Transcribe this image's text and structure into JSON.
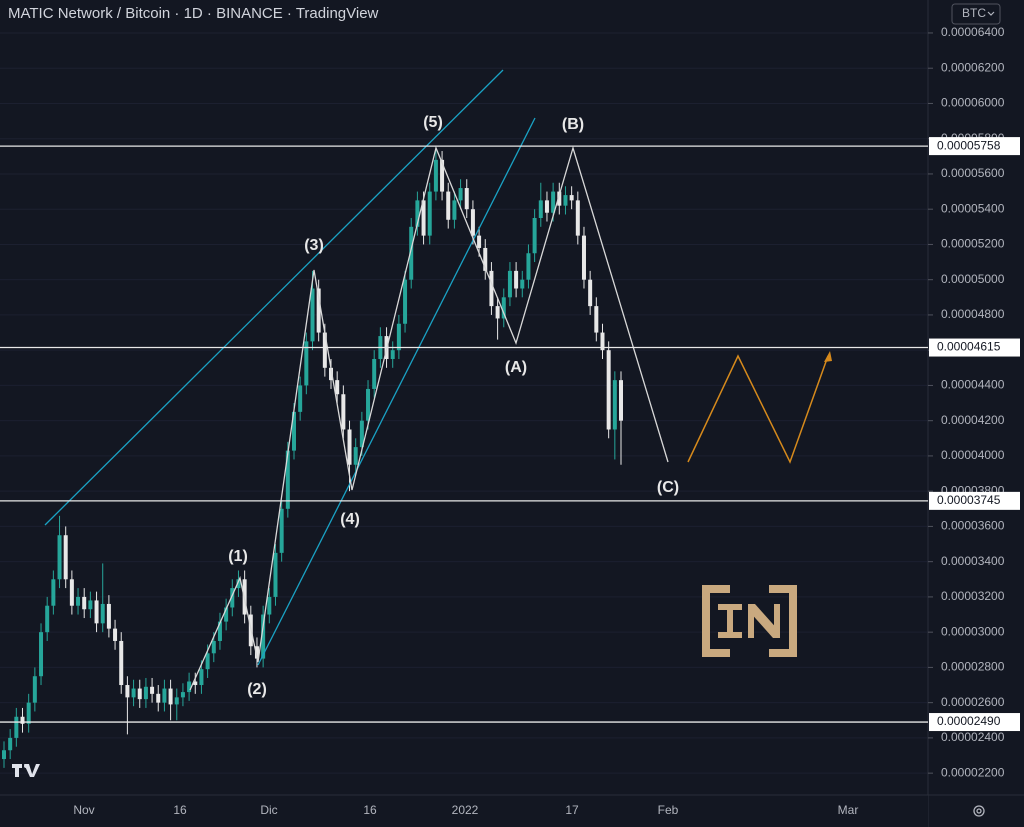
{
  "chart_data": {
    "type": "candlestick",
    "title": "MATIC Network / Bitcoin · 1D · BINANCE · TradingView",
    "currency": "BTC",
    "up_color": "#26a69a",
    "down_color": "#e8e8e8",
    "ylim": [
      2.076e-05,
      6.587e-05
    ],
    "yticks": [
      {
        "value": 6.4e-05,
        "label": "0.00006400"
      },
      {
        "value": 6.2e-05,
        "label": "0.00006200"
      },
      {
        "value": 6e-05,
        "label": "0.00006000"
      },
      {
        "value": 5.8e-05,
        "label": "0.00005800"
      },
      {
        "value": 5.6e-05,
        "label": "0.00005600"
      },
      {
        "value": 5.4e-05,
        "label": "0.00005400"
      },
      {
        "value": 5.2e-05,
        "label": "0.00005200"
      },
      {
        "value": 5e-05,
        "label": "0.00005000"
      },
      {
        "value": 4.8e-05,
        "label": "0.00004800"
      },
      {
        "value": 4.6e-05,
        "label": "0.00004600"
      },
      {
        "value": 4.4e-05,
        "label": "0.00004400"
      },
      {
        "value": 4.2e-05,
        "label": "0.00004200"
      },
      {
        "value": 4e-05,
        "label": "0.00004000"
      },
      {
        "value": 3.8e-05,
        "label": "0.00003800"
      },
      {
        "value": 3.6e-05,
        "label": "0.00003600"
      },
      {
        "value": 3.4e-05,
        "label": "0.00003400"
      },
      {
        "value": 3.2e-05,
        "label": "0.00003200"
      },
      {
        "value": 3e-05,
        "label": "0.00003000"
      },
      {
        "value": 2.8e-05,
        "label": "0.00002800"
      },
      {
        "value": 2.6e-05,
        "label": "0.00002600"
      },
      {
        "value": 2.4e-05,
        "label": "0.00002400"
      },
      {
        "value": 2.2e-05,
        "label": "0.00002200"
      }
    ],
    "price_lines": [
      5.758e-05,
      4.615e-05,
      3.745e-05,
      {
        "value": 2.49e-05,
        "label": "0.00002490"
      }
    ],
    "xlabels": [
      "Nov",
      "16",
      "Dic",
      "16",
      "2022",
      "17",
      "Feb",
      "Mar"
    ],
    "wave_labels": [
      "(1)",
      "(2)",
      "(3)",
      "(4)",
      "(5)",
      "(A)",
      "(B)",
      "(C)"
    ],
    "open": [
      2.28e-05,
      2.33e-05,
      2.4e-05,
      2.52e-05,
      2.48e-05,
      2.6e-05,
      2.75e-05,
      3e-05,
      3.15e-05,
      3.3e-05,
      3.55e-05,
      3.3e-05,
      3.15e-05,
      3.2e-05,
      3.13e-05,
      3.18e-05,
      3.05e-05,
      3.16e-05,
      3.02e-05,
      2.95e-05,
      2.7e-05,
      2.63e-05,
      2.68e-05,
      2.62e-05,
      2.69e-05,
      2.65e-05,
      2.6e-05,
      2.68e-05,
      2.59e-05,
      2.63e-05,
      2.66e-05,
      2.72e-05,
      2.7e-05,
      2.79e-05,
      2.88e-05,
      2.95e-05,
      3.06e-05,
      3.14e-05,
      3.25e-05,
      3.3e-05,
      3.1e-05,
      2.92e-05,
      2.85e-05,
      3.1e-05,
      3.2e-05,
      3.45e-05,
      3.7e-05,
      4.03e-05,
      4.25e-05,
      4.4e-05,
      4.65e-05,
      4.95e-05,
      4.7e-05,
      4.5e-05,
      4.43e-05,
      4.35e-05,
      4.15e-05,
      3.95e-05,
      4.05e-05,
      4.2e-05,
      4.38e-05,
      4.55e-05,
      4.68e-05,
      4.55e-05,
      4.6e-05,
      4.75e-05,
      5e-05,
      5.3e-05,
      5.45e-05,
      5.25e-05,
      5.5e-05,
      5.68e-05,
      5.5e-05,
      5.34e-05,
      5.45e-05,
      5.52e-05,
      5.4e-05,
      5.25e-05,
      5.18e-05,
      5.05e-05,
      4.85e-05,
      4.78e-05,
      4.9e-05,
      5.05e-05,
      4.95e-05,
      5e-05,
      5.15e-05,
      5.35e-05,
      5.45e-05,
      5.38e-05,
      5.5e-05,
      5.42e-05,
      5.48e-05,
      5.45e-05,
      5.25e-05,
      5e-05,
      4.85e-05,
      4.7e-05,
      4.6e-05,
      4.15e-05,
      4.43e-05
    ],
    "high": [
      2.38e-05,
      2.45e-05,
      2.57e-05,
      2.57e-05,
      2.65e-05,
      2.8e-05,
      3.05e-05,
      3.2e-05,
      3.35e-05,
      3.66e-05,
      3.6e-05,
      3.35e-05,
      3.25e-05,
      3.25e-05,
      3.23e-05,
      3.23e-05,
      3.39e-05,
      3.21e-05,
      3.07e-05,
      3e-05,
      2.75e-05,
      2.73e-05,
      2.73e-05,
      2.74e-05,
      2.74e-05,
      2.7e-05,
      2.73e-05,
      2.73e-05,
      2.68e-05,
      2.71e-05,
      2.77e-05,
      2.77e-05,
      2.84e-05,
      2.93e-05,
      3e-05,
      3.11e-05,
      3.19e-05,
      3.3e-05,
      3.35e-05,
      3.35e-05,
      3.15e-05,
      2.97e-05,
      3.15e-05,
      3.25e-05,
      3.5e-05,
      3.75e-05,
      4.08e-05,
      4.3e-05,
      4.45e-05,
      4.7e-05,
      5.05e-05,
      5e-05,
      4.75e-05,
      4.55e-05,
      4.48e-05,
      4.4e-05,
      4.2e-05,
      4.1e-05,
      4.25e-05,
      4.43e-05,
      4.6e-05,
      4.73e-05,
      4.73e-05,
      4.65e-05,
      4.8e-05,
      5.05e-05,
      5.35e-05,
      5.5e-05,
      5.5e-05,
      5.55e-05,
      5.75e-05,
      5.73e-05,
      5.55e-05,
      5.5e-05,
      5.57e-05,
      5.57e-05,
      5.45e-05,
      5.3e-05,
      5.23e-05,
      5.1e-05,
      4.9e-05,
      4.95e-05,
      5.1e-05,
      5.1e-05,
      5.05e-05,
      5.2e-05,
      5.4e-05,
      5.55e-05,
      5.5e-05,
      5.55e-05,
      5.55e-05,
      5.53e-05,
      5.53e-05,
      5.5e-05,
      5.3e-05,
      5.05e-05,
      4.9e-05,
      4.75e-05,
      4.65e-05,
      4.48e-05,
      4.48e-05
    ],
    "low": [
      2.23e-05,
      2.28e-05,
      2.35e-05,
      2.43e-05,
      2.43e-05,
      2.55e-05,
      2.7e-05,
      2.95e-05,
      3.1e-05,
      3.25e-05,
      3.25e-05,
      3.1e-05,
      3.1e-05,
      3.08e-05,
      3.08e-05,
      3e-05,
      3e-05,
      2.97e-05,
      2.9e-05,
      2.65e-05,
      2.42e-05,
      2.58e-05,
      2.57e-05,
      2.57e-05,
      2.6e-05,
      2.55e-05,
      2.55e-05,
      2.5e-05,
      2.5e-05,
      2.58e-05,
      2.61e-05,
      2.65e-05,
      2.65e-05,
      2.74e-05,
      2.83e-05,
      2.9e-05,
      3.01e-05,
      3.09e-05,
      3.2e-05,
      3.05e-05,
      2.87e-05,
      2.8e-05,
      2.8e-05,
      3.05e-05,
      3.15e-05,
      3.4e-05,
      3.65e-05,
      3.98e-05,
      4.2e-05,
      4.35e-05,
      4.6e-05,
      4.65e-05,
      4.45e-05,
      4.38e-05,
      4.3e-05,
      4.1e-05,
      3.8e-05,
      3.9e-05,
      4e-05,
      4.15e-05,
      4.33e-05,
      4.5e-05,
      4.5e-05,
      4.5e-05,
      4.55e-05,
      4.7e-05,
      4.95e-05,
      5.25e-05,
      5.2e-05,
      5.2e-05,
      5.45e-05,
      5.45e-05,
      5.29e-05,
      5.29e-05,
      5.4e-05,
      5.35e-05,
      5.2e-05,
      5.13e-05,
      5e-05,
      4.8e-05,
      4.66e-05,
      4.73e-05,
      4.85e-05,
      4.9e-05,
      4.9e-05,
      4.95e-05,
      5.1e-05,
      5.3e-05,
      5.33e-05,
      5.33e-05,
      5.37e-05,
      5.37e-05,
      5.4e-05,
      5.2e-05,
      4.95e-05,
      4.8e-05,
      4.65e-05,
      4.55e-05,
      4.1e-05,
      3.98e-05,
      3.95e-05
    ],
    "close": [
      2.33e-05,
      2.4e-05,
      2.52e-05,
      2.48e-05,
      2.6e-05,
      2.75e-05,
      3e-05,
      3.15e-05,
      3.3e-05,
      3.55e-05,
      3.3e-05,
      3.15e-05,
      3.2e-05,
      3.13e-05,
      3.18e-05,
      3.05e-05,
      3.16e-05,
      3.02e-05,
      2.95e-05,
      2.7e-05,
      2.63e-05,
      2.68e-05,
      2.62e-05,
      2.69e-05,
      2.65e-05,
      2.6e-05,
      2.68e-05,
      2.59e-05,
      2.63e-05,
      2.66e-05,
      2.72e-05,
      2.7e-05,
      2.79e-05,
      2.88e-05,
      2.95e-05,
      3.06e-05,
      3.14e-05,
      3.25e-05,
      3.3e-05,
      3.1e-05,
      2.92e-05,
      2.85e-05,
      3.1e-05,
      3.2e-05,
      3.45e-05,
      3.7e-05,
      4.03e-05,
      4.25e-05,
      4.4e-05,
      4.65e-05,
      4.95e-05,
      4.7e-05,
      4.5e-05,
      4.43e-05,
      4.35e-05,
      4.15e-05,
      3.95e-05,
      4.05e-05,
      4.2e-05,
      4.38e-05,
      4.55e-05,
      4.68e-05,
      4.55e-05,
      4.6e-05,
      4.75e-05,
      5e-05,
      5.3e-05,
      5.45e-05,
      5.25e-05,
      5.5e-05,
      5.68e-05,
      5.5e-05,
      5.34e-05,
      5.45e-05,
      5.52e-05,
      5.4e-05,
      5.25e-05,
      5.18e-05,
      5.05e-05,
      4.85e-05,
      4.78e-05,
      4.9e-05,
      5.05e-05,
      4.95e-05,
      5e-05,
      5.15e-05,
      5.35e-05,
      5.45e-05,
      5.38e-05,
      5.5e-05,
      5.42e-05,
      5.48e-05,
      5.45e-05,
      5.25e-05,
      5e-05,
      4.85e-05,
      4.7e-05,
      4.6e-05,
      4.15e-05,
      4.43e-05,
      4.2e-05
    ]
  }
}
